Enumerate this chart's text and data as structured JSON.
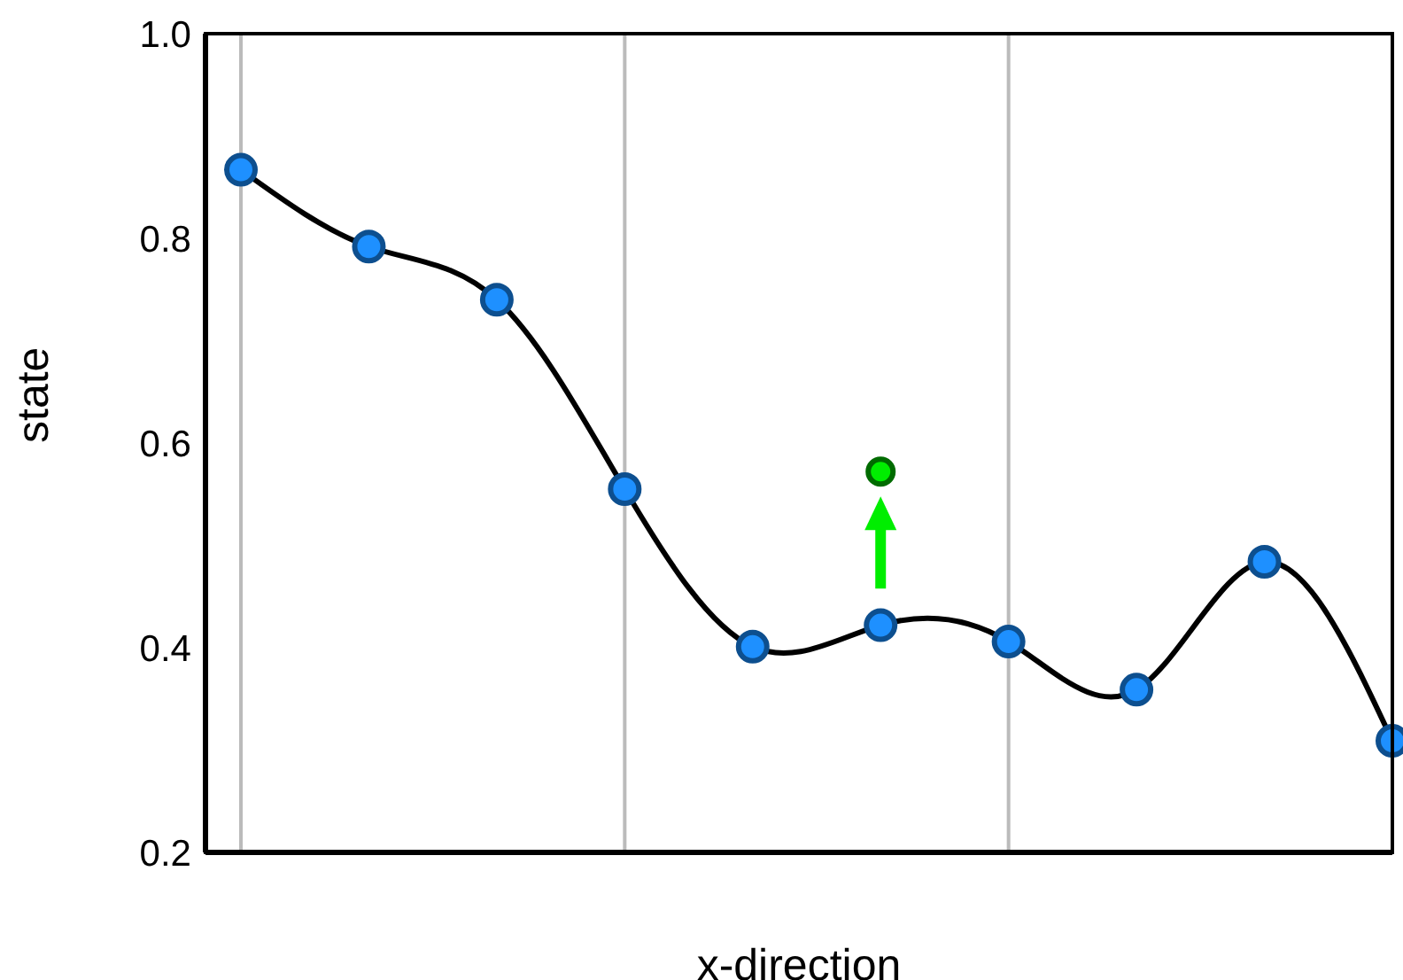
{
  "chart_data": {
    "type": "line",
    "xlabel": "x-direction",
    "ylabel": "state",
    "categories": [
      null,
      null,
      null,
      null,
      null,
      null,
      null,
      null,
      null,
      null
    ],
    "series": [
      {
        "color": "#000000",
        "marker": "circle",
        "values": [
          0.867,
          0.792,
          0.74,
          0.555,
          0.401,
          0.422,
          0.406,
          0.359,
          0.484,
          0.309
        ]
      },
      {
        "type": "scatter",
        "color": "#00ee00",
        "marker": "circle",
        "values": [
          null,
          null,
          null,
          null,
          null,
          0.572,
          null,
          null,
          null,
          null
        ]
      }
    ],
    "ylim": [
      0.2,
      1.0
    ],
    "yticks": [
      0.2,
      0.4,
      0.6,
      0.8,
      {
        "value": 1,
        "label": "1.0"
      }
    ],
    "tick_labels": "y",
    "grid": "x"
  }
}
